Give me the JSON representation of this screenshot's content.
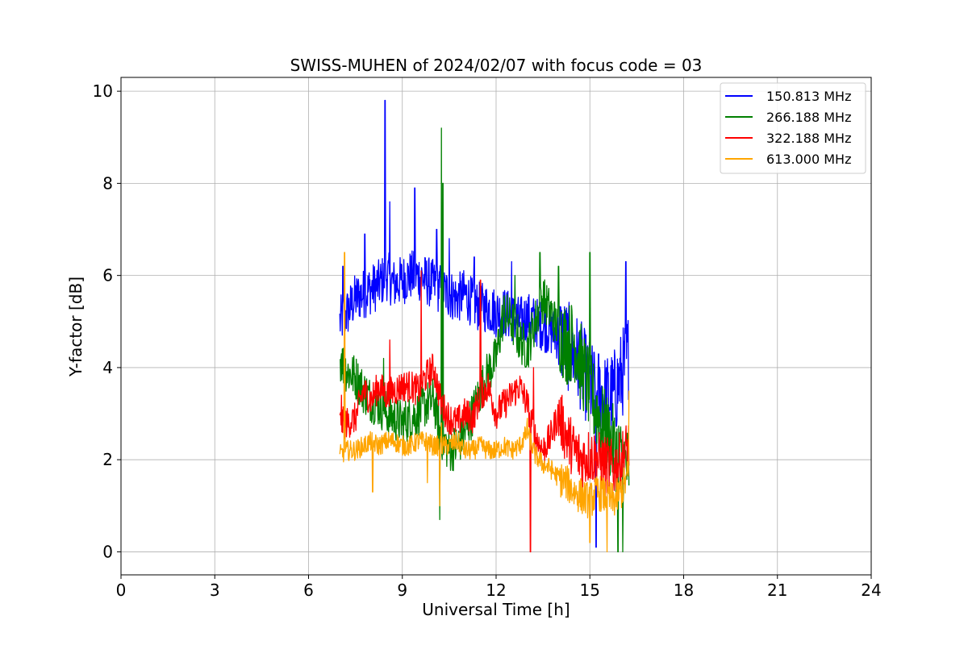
{
  "chart_data": {
    "type": "line",
    "title": "SWISS-MUHEN of 2024/02/07 with focus code = 03",
    "xlabel": "Universal Time [h]",
    "ylabel": "Y-factor [dB]",
    "xlim": [
      0,
      24
    ],
    "ylim": [
      -0.5,
      10.3
    ],
    "xticks": [
      0,
      3,
      6,
      9,
      12,
      15,
      18,
      21,
      24
    ],
    "yticks": [
      0,
      2,
      4,
      6,
      8,
      10
    ],
    "grid": true,
    "legend_position": "top-right",
    "series": [
      {
        "name": "150.813 MHz",
        "color": "#0000ff",
        "x": [
          7.0,
          7.25,
          7.5,
          7.75,
          8.0,
          8.25,
          8.5,
          8.75,
          9.0,
          9.25,
          9.5,
          9.75,
          10.0,
          10.25,
          10.5,
          10.75,
          11.0,
          11.25,
          11.5,
          11.75,
          12.0,
          12.25,
          12.5,
          12.75,
          13.0,
          13.25,
          13.5,
          13.75,
          14.0,
          14.25,
          14.5,
          14.75,
          15.0,
          15.25,
          15.5,
          15.75,
          16.0,
          16.25
        ],
        "values": [
          5.0,
          5.2,
          5.5,
          5.6,
          5.7,
          5.8,
          6.0,
          5.8,
          5.9,
          6.0,
          6.0,
          5.9,
          5.8,
          5.7,
          5.6,
          5.5,
          5.6,
          5.4,
          5.3,
          5.3,
          5.2,
          5.2,
          5.1,
          5.0,
          5.1,
          5.0,
          4.9,
          4.8,
          4.7,
          4.5,
          4.3,
          4.0,
          3.6,
          3.5,
          3.3,
          3.4,
          3.8,
          4.3
        ],
        "spikes": [
          [
            7.1,
            6.2
          ],
          [
            7.8,
            6.9
          ],
          [
            8.45,
            9.8
          ],
          [
            8.6,
            7.6
          ],
          [
            9.4,
            7.9
          ],
          [
            10.1,
            7.0
          ],
          [
            10.5,
            6.8
          ],
          [
            11.3,
            6.4
          ],
          [
            12.5,
            6.3
          ],
          [
            15.2,
            0.1
          ],
          [
            16.15,
            6.3
          ]
        ]
      },
      {
        "name": "266.188 MHz",
        "color": "#008000",
        "x": [
          7.0,
          7.25,
          7.5,
          7.75,
          8.0,
          8.25,
          8.5,
          8.75,
          9.0,
          9.25,
          9.5,
          9.75,
          10.0,
          10.25,
          10.5,
          10.75,
          11.0,
          11.25,
          11.5,
          11.75,
          12.0,
          12.25,
          12.5,
          12.75,
          13.0,
          13.25,
          13.5,
          13.75,
          14.0,
          14.25,
          14.5,
          14.75,
          15.0,
          15.25,
          15.5,
          15.75,
          16.0,
          16.25
        ],
        "values": [
          4.2,
          3.9,
          3.8,
          3.5,
          3.3,
          3.2,
          3.0,
          2.9,
          2.8,
          2.9,
          3.0,
          3.2,
          3.3,
          2.5,
          2.2,
          2.3,
          2.6,
          3.0,
          3.5,
          3.9,
          4.2,
          5.2,
          5.0,
          4.6,
          4.4,
          5.0,
          5.5,
          5.2,
          4.8,
          4.5,
          4.6,
          4.0,
          3.5,
          3.0,
          2.6,
          2.3,
          2.0,
          1.8
        ],
        "spikes": [
          [
            7.05,
            4.3
          ],
          [
            8.4,
            4.2
          ],
          [
            10.25,
            9.2
          ],
          [
            10.3,
            8.0
          ],
          [
            10.2,
            0.7
          ],
          [
            12.6,
            6.0
          ],
          [
            13.4,
            6.5
          ],
          [
            14.0,
            6.2
          ],
          [
            15.0,
            6.5
          ],
          [
            15.9,
            0.0
          ],
          [
            16.05,
            0.0
          ]
        ]
      },
      {
        "name": "322.188 MHz",
        "color": "#ff0000",
        "x": [
          7.0,
          7.25,
          7.5,
          7.75,
          8.0,
          8.25,
          8.5,
          8.75,
          9.0,
          9.25,
          9.5,
          9.75,
          10.0,
          10.25,
          10.5,
          10.75,
          11.0,
          11.25,
          11.5,
          11.75,
          12.0,
          12.25,
          12.5,
          12.75,
          13.0,
          13.25,
          13.5,
          13.75,
          14.0,
          14.25,
          14.5,
          14.75,
          15.0,
          15.25,
          15.5,
          15.75,
          16.0,
          16.25
        ],
        "values": [
          2.8,
          2.8,
          2.9,
          3.5,
          3.3,
          3.6,
          3.4,
          3.5,
          3.6,
          3.6,
          3.5,
          3.8,
          4.0,
          3.2,
          2.9,
          2.8,
          3.0,
          2.9,
          3.4,
          3.6,
          3.0,
          3.2,
          3.4,
          3.6,
          3.2,
          2.5,
          2.2,
          2.5,
          3.0,
          2.5,
          2.2,
          2.0,
          2.1,
          2.0,
          1.9,
          1.8,
          2.0,
          2.3
        ],
        "spikes": [
          [
            7.05,
            3.4
          ],
          [
            8.6,
            4.6
          ],
          [
            9.6,
            6.1
          ],
          [
            11.5,
            5.9
          ],
          [
            13.1,
            0.0
          ],
          [
            13.2,
            4.0
          ],
          [
            15.5,
            1.0
          ]
        ]
      },
      {
        "name": "613.000 MHz",
        "color": "#ffa500",
        "x": [
          7.0,
          7.25,
          7.5,
          7.75,
          8.0,
          8.25,
          8.5,
          8.75,
          9.0,
          9.25,
          9.5,
          9.75,
          10.0,
          10.25,
          10.5,
          10.75,
          11.0,
          11.25,
          11.5,
          11.75,
          12.0,
          12.25,
          12.5,
          12.75,
          13.0,
          13.25,
          13.5,
          13.75,
          14.0,
          14.25,
          14.5,
          14.75,
          15.0,
          15.25,
          15.5,
          15.75,
          16.0,
          16.25
        ],
        "values": [
          2.1,
          2.2,
          2.2,
          2.3,
          2.4,
          2.3,
          2.4,
          2.4,
          2.3,
          2.3,
          2.4,
          2.4,
          2.3,
          2.3,
          2.3,
          2.4,
          2.2,
          2.2,
          2.3,
          2.2,
          2.2,
          2.3,
          2.2,
          2.3,
          2.6,
          2.1,
          1.9,
          1.8,
          1.6,
          1.5,
          1.3,
          1.2,
          1.1,
          1.3,
          1.2,
          1.1,
          1.3,
          1.7
        ],
        "spikes": [
          [
            7.15,
            6.5
          ],
          [
            8.05,
            1.3
          ],
          [
            9.8,
            1.5
          ],
          [
            10.2,
            1.0
          ],
          [
            10.25,
            2.8
          ],
          [
            13.0,
            2.9
          ],
          [
            15.0,
            0.2
          ],
          [
            15.55,
            0.0
          ],
          [
            16.25,
            3.5
          ]
        ]
      }
    ]
  }
}
